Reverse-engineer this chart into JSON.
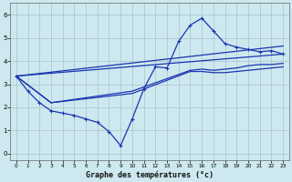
{
  "title": "Graphe des températures (°c)",
  "bg_color": "#cde8ef",
  "line_color": "#1a35b0",
  "grid_color": "#b0c8d0",
  "xlim": [
    -0.5,
    23.5
  ],
  "ylim": [
    -0.3,
    6.5
  ],
  "xticks": [
    0,
    1,
    2,
    3,
    4,
    5,
    6,
    7,
    8,
    9,
    10,
    11,
    12,
    13,
    14,
    15,
    16,
    17,
    18,
    19,
    20,
    21,
    22,
    23
  ],
  "yticks": [
    0,
    1,
    2,
    3,
    4,
    5,
    6
  ],
  "line_main": {
    "x": [
      0,
      1,
      2,
      3,
      4,
      5,
      6,
      7,
      8,
      9,
      10,
      11,
      12,
      13,
      14,
      15,
      16,
      17,
      18,
      19,
      20,
      21,
      22,
      23
    ],
    "y": [
      3.35,
      2.7,
      2.2,
      1.85,
      1.75,
      1.65,
      1.5,
      1.35,
      0.95,
      0.35,
      1.5,
      2.8,
      3.75,
      3.7,
      4.85,
      5.55,
      5.85,
      5.3,
      4.75,
      4.6,
      4.5,
      4.4,
      4.45,
      4.3
    ]
  },
  "line_high": {
    "x": [
      0,
      3,
      10,
      15,
      16,
      17,
      18,
      19,
      20,
      21,
      22,
      23
    ],
    "y": [
      3.35,
      2.2,
      2.7,
      3.6,
      3.65,
      3.6,
      3.65,
      3.7,
      3.8,
      3.85,
      3.85,
      3.9
    ]
  },
  "line_low": {
    "x": [
      0,
      3,
      10,
      15,
      16,
      17,
      18,
      19,
      20,
      21,
      22,
      23
    ],
    "y": [
      3.35,
      2.2,
      2.6,
      3.55,
      3.55,
      3.5,
      3.5,
      3.55,
      3.6,
      3.65,
      3.7,
      3.75
    ]
  },
  "line_straight_top": {
    "x": [
      0,
      23
    ],
    "y": [
      3.35,
      4.65
    ]
  },
  "line_straight_bot": {
    "x": [
      0,
      23
    ],
    "y": [
      3.35,
      4.3
    ]
  }
}
